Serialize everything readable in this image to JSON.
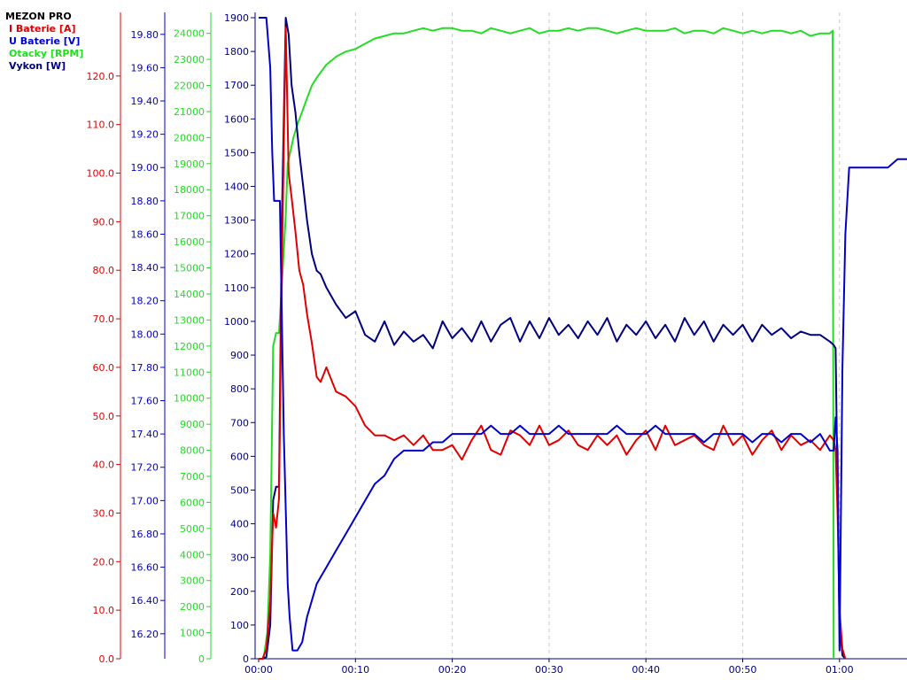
{
  "app": {
    "title": "MEZON PRO"
  },
  "legend": [
    {
      "label": "I Baterie [A]",
      "color": "#e00000"
    },
    {
      "label": "U Baterie [V]",
      "color": "#0000cc"
    },
    {
      "label": "Otacky [RPM]",
      "color": "#22dd22"
    },
    {
      "label": "Vykon [W]",
      "color": "#000080"
    }
  ],
  "chart_data": {
    "type": "line",
    "title": "MEZON PRO",
    "grid": {
      "vertical": true,
      "horizontal": false,
      "style": "dashed"
    },
    "legend_position": "top-left",
    "x_axis": {
      "ticks": [
        "00:00",
        "00:10",
        "00:20",
        "00:30",
        "00:40",
        "00:50",
        "01:00"
      ],
      "tick_seconds": [
        0,
        10,
        20,
        30,
        40,
        50,
        60
      ],
      "range_seconds": [
        0,
        67
      ]
    },
    "y_axes": [
      {
        "series": "I Baterie [A]",
        "color": "#e00000",
        "range": [
          0,
          132
        ],
        "ticks": [
          "0.0",
          "10.0",
          "20.0",
          "30.0",
          "40.0",
          "50.0",
          "60.0",
          "70.0",
          "80.0",
          "90.0",
          "100.0",
          "110.0",
          "120.0"
        ]
      },
      {
        "series": "U Baterie [V]",
        "color": "#0000cc",
        "range": [
          16.05,
          19.9
        ],
        "ticks": [
          "16.20",
          "16.40",
          "16.60",
          "16.80",
          "17.00",
          "17.20",
          "17.40",
          "17.60",
          "17.80",
          "18.00",
          "18.20",
          "18.40",
          "18.60",
          "18.80",
          "19.00",
          "19.20",
          "19.40",
          "19.60",
          "19.80"
        ]
      },
      {
        "series": "Otacky [RPM]",
        "color": "#22dd22",
        "range": [
          0,
          24600
        ],
        "ticks": [
          "0",
          "1000",
          "2000",
          "3000",
          "4000",
          "5000",
          "6000",
          "7000",
          "8000",
          "9000",
          "10000",
          "11000",
          "12000",
          "13000",
          "14000",
          "15000",
          "16000",
          "17000",
          "18000",
          "19000",
          "20000",
          "21000",
          "22000",
          "23000",
          "24000"
        ]
      },
      {
        "series": "Vykon [W]",
        "color": "#000080",
        "range": [
          0,
          1900
        ],
        "ticks": [
          "0",
          "100",
          "200",
          "300",
          "400",
          "500",
          "600",
          "700",
          "800",
          "900",
          "1000",
          "1100",
          "1200",
          "1300",
          "1400",
          "1500",
          "1600",
          "1700",
          "1800",
          "1900"
        ]
      }
    ],
    "series": [
      {
        "name": "I Baterie [A]",
        "color": "#e00000",
        "axis": 0,
        "x": [
          0,
          0.4,
          0.8,
          1.2,
          1.5,
          1.8,
          2.1,
          2.4,
          2.8,
          3.1,
          3.4,
          3.8,
          4.2,
          4.6,
          5.0,
          5.5,
          6.0,
          6.4,
          7.0,
          8.0,
          9.0,
          10.0,
          11.0,
          12.0,
          13.0,
          14.0,
          15.0,
          16.0,
          17.0,
          18.0,
          19.0,
          20.0,
          21.0,
          22.0,
          23.0,
          24.0,
          25.0,
          26.0,
          27.0,
          28.0,
          29.0,
          30.0,
          31.0,
          32.0,
          33.0,
          34.0,
          35.0,
          36.0,
          37.0,
          38.0,
          39.0,
          40.0,
          41.0,
          42.0,
          43.0,
          44.0,
          45.0,
          46.0,
          47.0,
          48.0,
          49.0,
          50.0,
          51.0,
          52.0,
          53.0,
          54.0,
          55.0,
          56.0,
          57.0,
          58.0,
          59.0,
          59.4,
          59.6,
          59.8,
          60.0,
          60.3,
          60.6
        ],
        "y": [
          0,
          0,
          2,
          12,
          30,
          27,
          33,
          80,
          130,
          100,
          95,
          88,
          80,
          77,
          71,
          65,
          58,
          57,
          60,
          55,
          54,
          52,
          48,
          46,
          46,
          45,
          46,
          44,
          46,
          43,
          43,
          44,
          41,
          45,
          48,
          43,
          42,
          47,
          46,
          44,
          48,
          44,
          45,
          47,
          44,
          43,
          46,
          44,
          46,
          42,
          45,
          47,
          43,
          48,
          44,
          45,
          46,
          44,
          43,
          48,
          44,
          46,
          42,
          45,
          47,
          43,
          46,
          44,
          45,
          43,
          46,
          45,
          43,
          30,
          10,
          2,
          0
        ]
      },
      {
        "name": "U Baterie [V]",
        "color": "#0000cc",
        "axis": 1,
        "x": [
          0,
          0.8,
          1.2,
          1.4,
          1.6,
          2.2,
          2.6,
          3.0,
          3.2,
          3.5,
          4.0,
          4.5,
          5.0,
          5.5,
          6.0,
          7.0,
          8.0,
          9.0,
          10.0,
          11.0,
          12.0,
          13.0,
          14.0,
          15.0,
          17.0,
          18.0,
          19.0,
          20.0,
          21.0,
          22.0,
          23.0,
          24.0,
          25.0,
          26.0,
          27.0,
          28.0,
          29.0,
          30.0,
          31.0,
          32.0,
          33.0,
          34.0,
          35.0,
          36.0,
          37.0,
          38.0,
          39.0,
          40.0,
          41.0,
          42.0,
          43.0,
          44.0,
          45.0,
          46.0,
          47.0,
          48.0,
          49.0,
          50.0,
          51.0,
          52.0,
          53.0,
          54.0,
          55.0,
          56.0,
          57.0,
          58.0,
          59.0,
          59.4,
          59.6,
          59.8,
          60.0,
          60.3,
          60.6,
          61.0,
          62.0,
          63.0,
          64.0,
          65.0,
          66.0,
          67.0
        ],
        "y": [
          19.9,
          19.9,
          19.6,
          19.1,
          18.8,
          18.8,
          17.4,
          16.5,
          16.3,
          16.1,
          16.1,
          16.15,
          16.3,
          16.4,
          16.5,
          16.6,
          16.7,
          16.8,
          16.9,
          17.0,
          17.1,
          17.15,
          17.25,
          17.3,
          17.3,
          17.35,
          17.35,
          17.4,
          17.4,
          17.4,
          17.4,
          17.45,
          17.4,
          17.4,
          17.45,
          17.4,
          17.4,
          17.4,
          17.45,
          17.4,
          17.4,
          17.4,
          17.4,
          17.4,
          17.45,
          17.4,
          17.4,
          17.4,
          17.45,
          17.4,
          17.4,
          17.4,
          17.4,
          17.35,
          17.4,
          17.4,
          17.4,
          17.4,
          17.35,
          17.4,
          17.4,
          17.35,
          17.4,
          17.4,
          17.35,
          17.4,
          17.3,
          17.3,
          17.5,
          17.3,
          16.1,
          17.8,
          18.6,
          19.0,
          19.0,
          19.0,
          19.0,
          19.0,
          19.05,
          19.05
        ]
      },
      {
        "name": "Otacky [RPM]",
        "color": "#22dd22",
        "axis": 2,
        "x": [
          0,
          0.5,
          0.9,
          1.2,
          1.5,
          1.8,
          2.1,
          2.5,
          2.8,
          3.0,
          3.3,
          3.6,
          4.0,
          4.5,
          5.0,
          5.5,
          6.0,
          7.0,
          8.0,
          9.0,
          10.0,
          11.0,
          12.0,
          13.0,
          14.0,
          15.0,
          16.0,
          17.0,
          18.0,
          19.0,
          20.0,
          21.0,
          22.0,
          23.0,
          24.0,
          25.0,
          26.0,
          27.0,
          28.0,
          29.0,
          30.0,
          31.0,
          32.0,
          33.0,
          34.0,
          35.0,
          36.0,
          37.0,
          38.0,
          39.0,
          40.0,
          41.0,
          42.0,
          43.0,
          44.0,
          45.0,
          46.0,
          47.0,
          48.0,
          49.0,
          50.0,
          51.0,
          52.0,
          53.0,
          54.0,
          55.0,
          56.0,
          57.0,
          58.0,
          59.0,
          59.3,
          59.4
        ],
        "y": [
          0,
          0,
          1000,
          4000,
          12000,
          12500,
          12500,
          15000,
          17000,
          19000,
          19500,
          20000,
          20500,
          21000,
          21500,
          22000,
          22300,
          22800,
          23100,
          23300,
          23400,
          23600,
          23800,
          23900,
          24000,
          24000,
          24100,
          24200,
          24100,
          24200,
          24200,
          24100,
          24100,
          24000,
          24200,
          24100,
          24000,
          24100,
          24200,
          24000,
          24100,
          24100,
          24200,
          24100,
          24200,
          24200,
          24100,
          24000,
          24100,
          24200,
          24100,
          24100,
          24100,
          24200,
          24000,
          24100,
          24100,
          24000,
          24200,
          24100,
          24000,
          24100,
          24000,
          24100,
          24100,
          24000,
          24100,
          23900,
          24000,
          24000,
          24100,
          0
        ]
      },
      {
        "name": "Vykon [W]",
        "color": "#000080",
        "axis": 3,
        "x": [
          0,
          0.4,
          0.8,
          1.2,
          1.5,
          1.8,
          2.1,
          2.4,
          2.8,
          3.1,
          3.4,
          3.8,
          4.2,
          4.6,
          5.0,
          5.5,
          6.0,
          6.4,
          7.0,
          8.0,
          9.0,
          10.0,
          11.0,
          12.0,
          13.0,
          14.0,
          15.0,
          16.0,
          17.0,
          18.0,
          19.0,
          20.0,
          21.0,
          22.0,
          23.0,
          24.0,
          25.0,
          26.0,
          27.0,
          28.0,
          29.0,
          30.0,
          31.0,
          32.0,
          33.0,
          34.0,
          35.0,
          36.0,
          37.0,
          38.0,
          39.0,
          40.0,
          41.0,
          42.0,
          43.0,
          44.0,
          45.0,
          46.0,
          47.0,
          48.0,
          49.0,
          50.0,
          51.0,
          52.0,
          53.0,
          54.0,
          55.0,
          56.0,
          57.0,
          58.0,
          59.0,
          59.4,
          59.6,
          59.8,
          60.0,
          60.3,
          60.6
        ],
        "y": [
          0,
          0,
          5,
          100,
          470,
          510,
          510,
          1300,
          1900,
          1850,
          1700,
          1620,
          1500,
          1400,
          1300,
          1200,
          1150,
          1140,
          1100,
          1050,
          1010,
          1030,
          960,
          940,
          1000,
          930,
          970,
          940,
          960,
          920,
          1000,
          950,
          980,
          940,
          1000,
          940,
          990,
          1010,
          940,
          1000,
          950,
          1010,
          960,
          990,
          950,
          1000,
          960,
          1010,
          940,
          990,
          960,
          1000,
          950,
          990,
          940,
          1010,
          960,
          1000,
          940,
          990,
          960,
          990,
          940,
          990,
          960,
          980,
          950,
          970,
          960,
          960,
          940,
          930,
          920,
          500,
          100,
          10,
          0
        ]
      }
    ]
  }
}
